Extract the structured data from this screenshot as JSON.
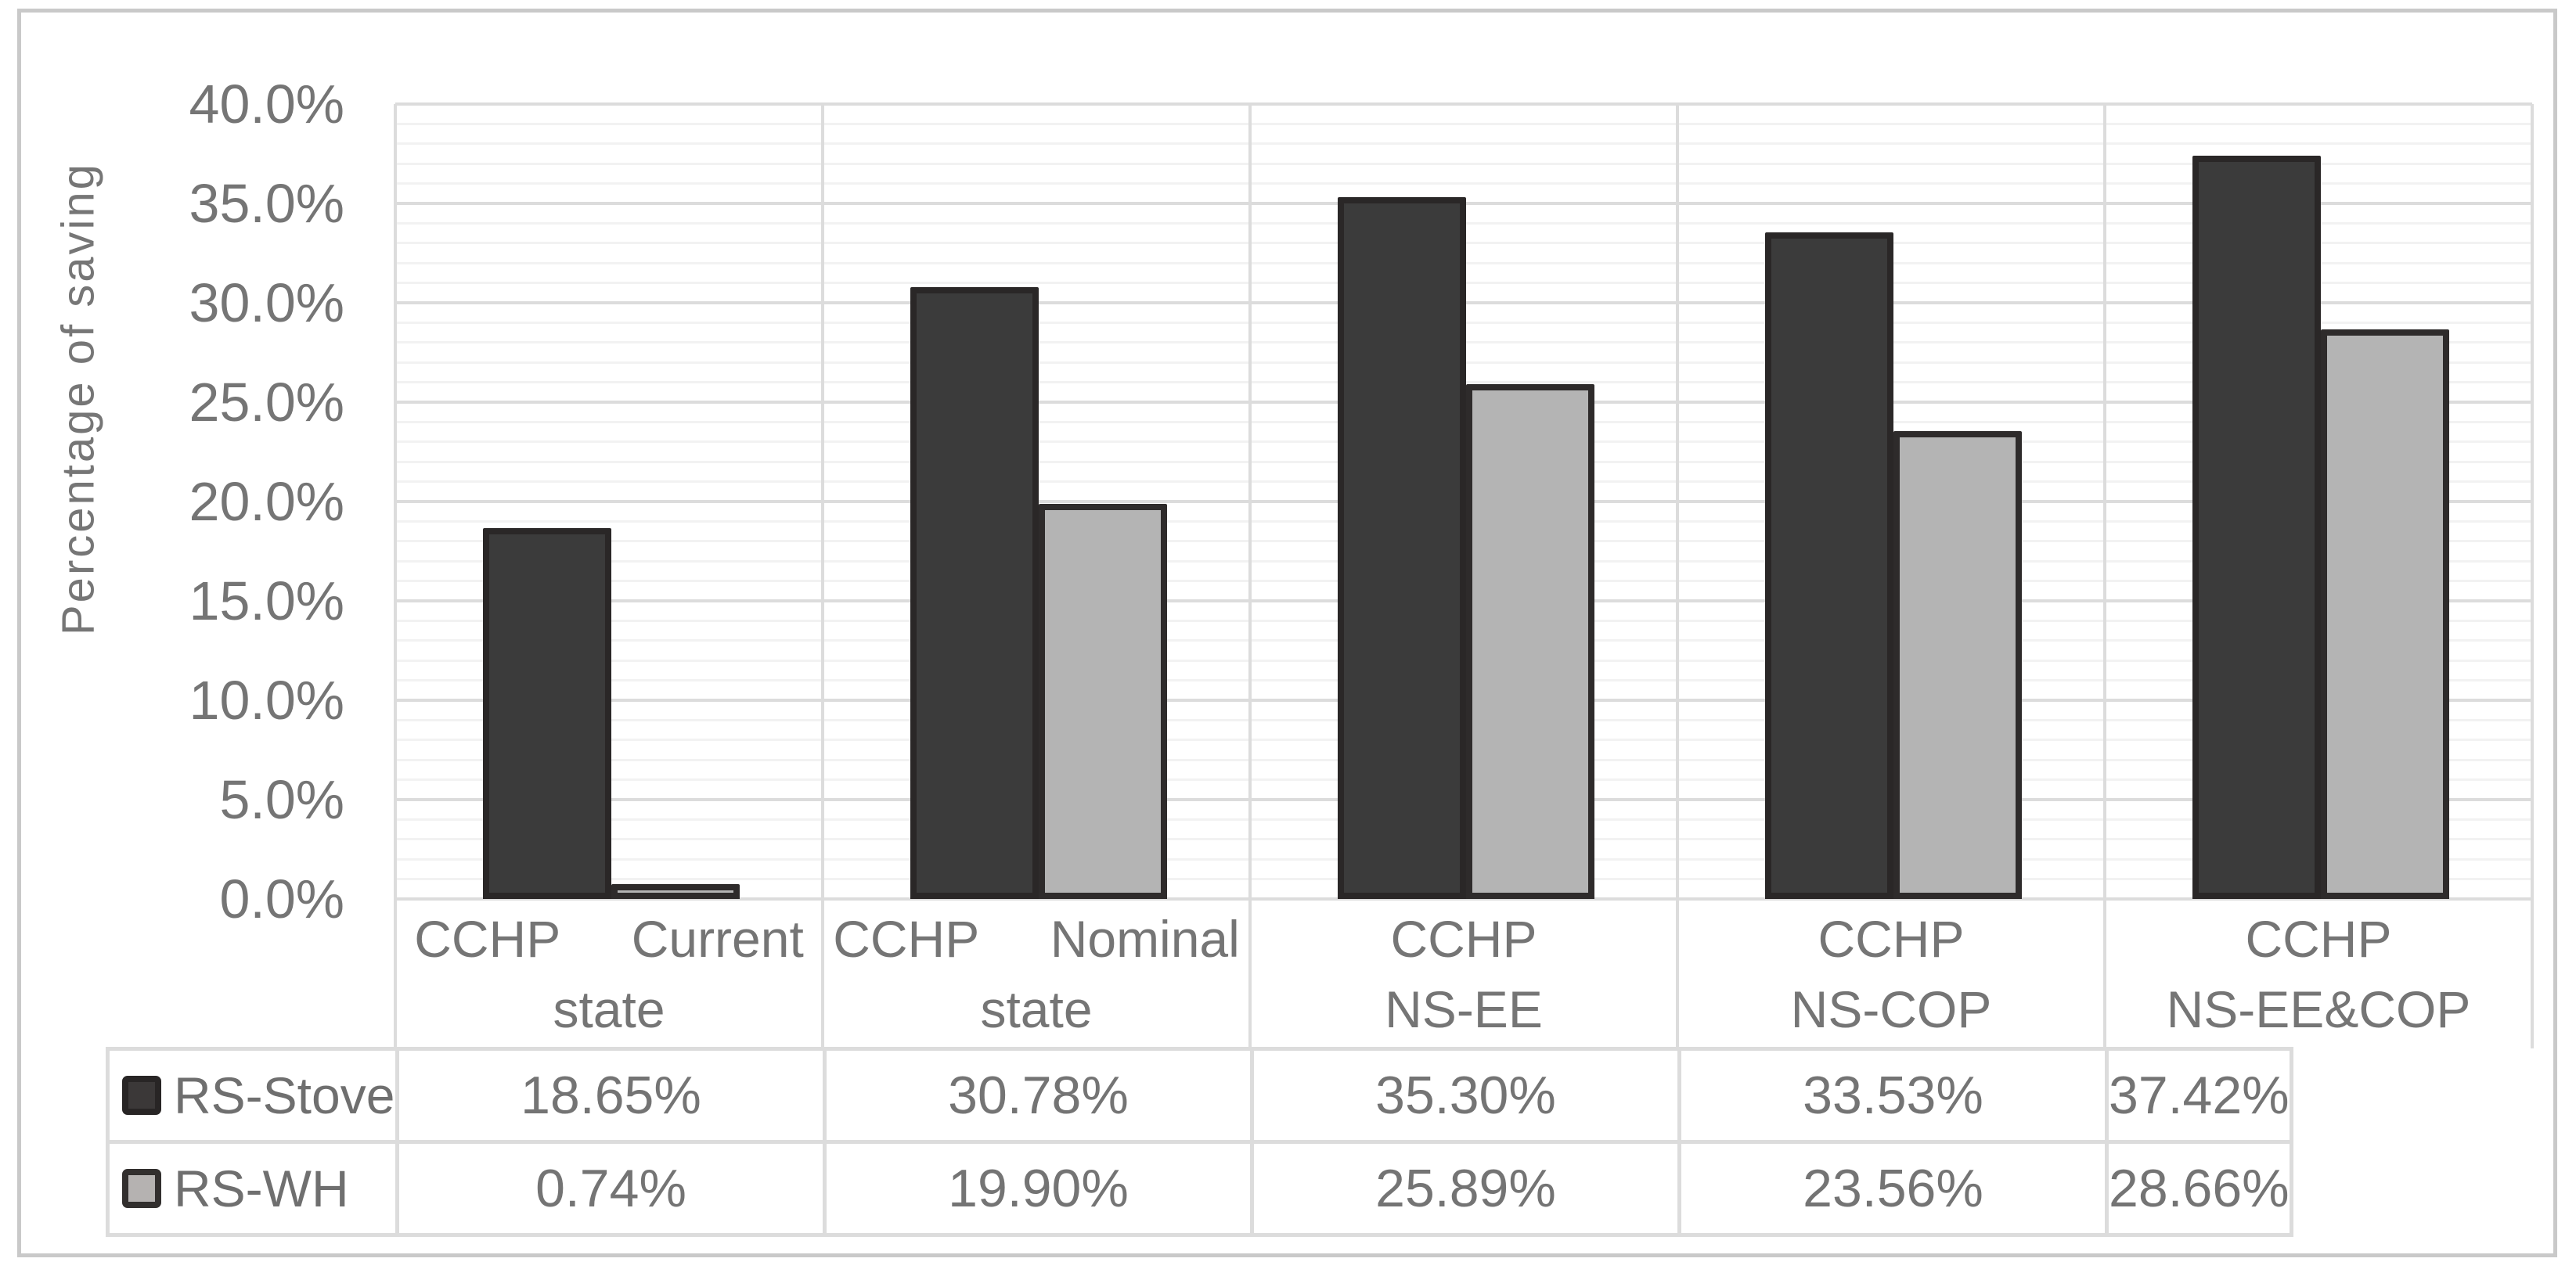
{
  "chart_data": {
    "type": "bar",
    "title": "",
    "ylabel": "Percentage of saving",
    "xlabel": "",
    "ylim": [
      0,
      40
    ],
    "y_unit": "%",
    "y_major_step": 5,
    "y_minor_step": 1,
    "y_tick_labels": [
      "40.0%",
      "35.0%",
      "30.0%",
      "25.0%",
      "20.0%",
      "15.0%",
      "10.0%",
      "5.0%",
      "0.0%"
    ],
    "grid": true,
    "legend_position": "data-table-left",
    "categories": [
      "CCHP Current state",
      "CCHP Nominal state",
      "CCHP NS-EE",
      "CCHP NS-COP",
      "CCHP NS-EE&COP"
    ],
    "category_label_lines": [
      [
        "CCHP     Current",
        "state"
      ],
      [
        "CCHP     Nominal",
        "state"
      ],
      [
        "CCHP",
        "NS-EE"
      ],
      [
        "CCHP",
        "NS-COP"
      ],
      [
        "CCHP",
        "NS-EE&COP"
      ]
    ],
    "series": [
      {
        "name": "RS-Stove",
        "values": [
          18.65,
          30.78,
          35.3,
          33.53,
          37.42
        ],
        "value_labels": [
          "18.65%",
          "30.78%",
          "35.30%",
          "33.53%",
          "37.42%"
        ],
        "fill": "#3b3b3b",
        "border": "#2a2727",
        "key_fill": "#3b3838",
        "key_border": "#282525"
      },
      {
        "name": "RS-WH",
        "values": [
          0.74,
          19.9,
          25.89,
          23.56,
          28.66
        ],
        "value_labels": [
          "0.74%",
          "19.90%",
          "25.89%",
          "23.56%",
          "28.66%"
        ],
        "fill": "#b4b4b4",
        "border": "#2e2b2b",
        "key_fill": "#b5b2b1",
        "key_border": "#322f2e"
      }
    ],
    "colors": {
      "major_grid": "#dcdcdc",
      "minor_grid": "#f2f2f2",
      "axis_text": "#757575",
      "frame_border": "#c9c9c9"
    }
  }
}
